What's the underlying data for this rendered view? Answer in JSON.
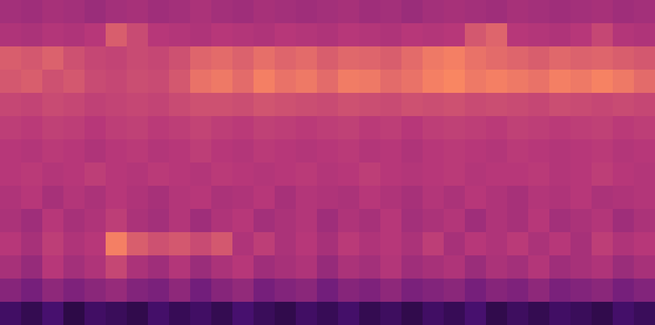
{
  "chart_data": {
    "type": "heatmap",
    "tick_labels": false,
    "zlim": [
      0,
      1
    ],
    "cells": [
      [
        0.45,
        0.44,
        0.46,
        0.45,
        0.43,
        0.45,
        0.46,
        0.44,
        0.45,
        0.47,
        0.45,
        0.44,
        0.46,
        0.45,
        0.44,
        0.45,
        0.46,
        0.44,
        0.45,
        0.43,
        0.45,
        0.46,
        0.45,
        0.44,
        0.46,
        0.45,
        0.44,
        0.45,
        0.46,
        0.44,
        0.45
      ],
      [
        0.48,
        0.47,
        0.49,
        0.48,
        0.5,
        0.62,
        0.56,
        0.5,
        0.49,
        0.48,
        0.5,
        0.49,
        0.48,
        0.5,
        0.49,
        0.48,
        0.5,
        0.49,
        0.48,
        0.5,
        0.49,
        0.5,
        0.6,
        0.64,
        0.5,
        0.49,
        0.48,
        0.5,
        0.55,
        0.49,
        0.48
      ],
      [
        0.62,
        0.6,
        0.63,
        0.58,
        0.55,
        0.54,
        0.56,
        0.55,
        0.58,
        0.64,
        0.66,
        0.63,
        0.67,
        0.64,
        0.66,
        0.62,
        0.65,
        0.64,
        0.62,
        0.66,
        0.7,
        0.72,
        0.68,
        0.66,
        0.64,
        0.62,
        0.65,
        0.63,
        0.64,
        0.62,
        0.6
      ],
      [
        0.6,
        0.62,
        0.58,
        0.6,
        0.56,
        0.55,
        0.57,
        0.56,
        0.6,
        0.68,
        0.7,
        0.66,
        0.72,
        0.68,
        0.7,
        0.66,
        0.71,
        0.7,
        0.66,
        0.68,
        0.72,
        0.74,
        0.7,
        0.72,
        0.7,
        0.68,
        0.72,
        0.7,
        0.73,
        0.7,
        0.66
      ],
      [
        0.55,
        0.54,
        0.56,
        0.55,
        0.53,
        0.54,
        0.55,
        0.54,
        0.56,
        0.58,
        0.58,
        0.57,
        0.59,
        0.58,
        0.57,
        0.56,
        0.58,
        0.57,
        0.56,
        0.58,
        0.57,
        0.58,
        0.56,
        0.57,
        0.56,
        0.55,
        0.57,
        0.56,
        0.55,
        0.56,
        0.55
      ],
      [
        0.52,
        0.51,
        0.53,
        0.52,
        0.5,
        0.52,
        0.53,
        0.51,
        0.52,
        0.54,
        0.52,
        0.51,
        0.53,
        0.52,
        0.51,
        0.52,
        0.53,
        0.51,
        0.52,
        0.5,
        0.52,
        0.53,
        0.52,
        0.51,
        0.53,
        0.52,
        0.51,
        0.52,
        0.53,
        0.51,
        0.52
      ],
      [
        0.5,
        0.49,
        0.51,
        0.5,
        0.48,
        0.5,
        0.51,
        0.49,
        0.5,
        0.52,
        0.5,
        0.49,
        0.51,
        0.5,
        0.49,
        0.5,
        0.51,
        0.49,
        0.5,
        0.48,
        0.5,
        0.51,
        0.5,
        0.49,
        0.51,
        0.5,
        0.49,
        0.5,
        0.51,
        0.49,
        0.5
      ],
      [
        0.5,
        0.51,
        0.49,
        0.5,
        0.52,
        0.5,
        0.49,
        0.51,
        0.5,
        0.49,
        0.51,
        0.5,
        0.49,
        0.5,
        0.51,
        0.49,
        0.5,
        0.52,
        0.5,
        0.49,
        0.5,
        0.51,
        0.49,
        0.5,
        0.5,
        0.51,
        0.49,
        0.5,
        0.52,
        0.5,
        0.49
      ],
      [
        0.48,
        0.5,
        0.46,
        0.49,
        0.47,
        0.5,
        0.48,
        0.46,
        0.49,
        0.5,
        0.47,
        0.48,
        0.5,
        0.46,
        0.49,
        0.48,
        0.47,
        0.5,
        0.48,
        0.46,
        0.49,
        0.47,
        0.5,
        0.48,
        0.46,
        0.49,
        0.48,
        0.5,
        0.47,
        0.48,
        0.49
      ],
      [
        0.47,
        0.44,
        0.5,
        0.46,
        0.48,
        0.52,
        0.47,
        0.45,
        0.49,
        0.44,
        0.48,
        0.5,
        0.45,
        0.47,
        0.49,
        0.44,
        0.48,
        0.46,
        0.5,
        0.45,
        0.47,
        0.49,
        0.44,
        0.48,
        0.46,
        0.5,
        0.45,
        0.47,
        0.49,
        0.44,
        0.47
      ],
      [
        0.5,
        0.46,
        0.52,
        0.48,
        0.5,
        0.72,
        0.62,
        0.58,
        0.6,
        0.56,
        0.6,
        0.48,
        0.52,
        0.47,
        0.5,
        0.46,
        0.51,
        0.48,
        0.5,
        0.47,
        0.52,
        0.46,
        0.5,
        0.48,
        0.51,
        0.47,
        0.5,
        0.46,
        0.52,
        0.48,
        0.5
      ],
      [
        0.46,
        0.42,
        0.5,
        0.45,
        0.48,
        0.55,
        0.47,
        0.44,
        0.49,
        0.43,
        0.47,
        0.5,
        0.44,
        0.46,
        0.48,
        0.42,
        0.47,
        0.45,
        0.49,
        0.44,
        0.46,
        0.48,
        0.43,
        0.47,
        0.45,
        0.49,
        0.44,
        0.46,
        0.48,
        0.43,
        0.46
      ],
      [
        0.38,
        0.34,
        0.4,
        0.36,
        0.39,
        0.42,
        0.37,
        0.35,
        0.4,
        0.33,
        0.38,
        0.41,
        0.34,
        0.37,
        0.39,
        0.33,
        0.38,
        0.36,
        0.4,
        0.35,
        0.37,
        0.39,
        0.34,
        0.38,
        0.36,
        0.4,
        0.35,
        0.37,
        0.39,
        0.34,
        0.37
      ],
      [
        0.2,
        0.16,
        0.22,
        0.14,
        0.2,
        0.18,
        0.15,
        0.21,
        0.17,
        0.2,
        0.16,
        0.22,
        0.18,
        0.15,
        0.2,
        0.17,
        0.21,
        0.16,
        0.19,
        0.15,
        0.2,
        0.17,
        0.22,
        0.15,
        0.19,
        0.16,
        0.2,
        0.18,
        0.15,
        0.21,
        0.18
      ]
    ]
  }
}
